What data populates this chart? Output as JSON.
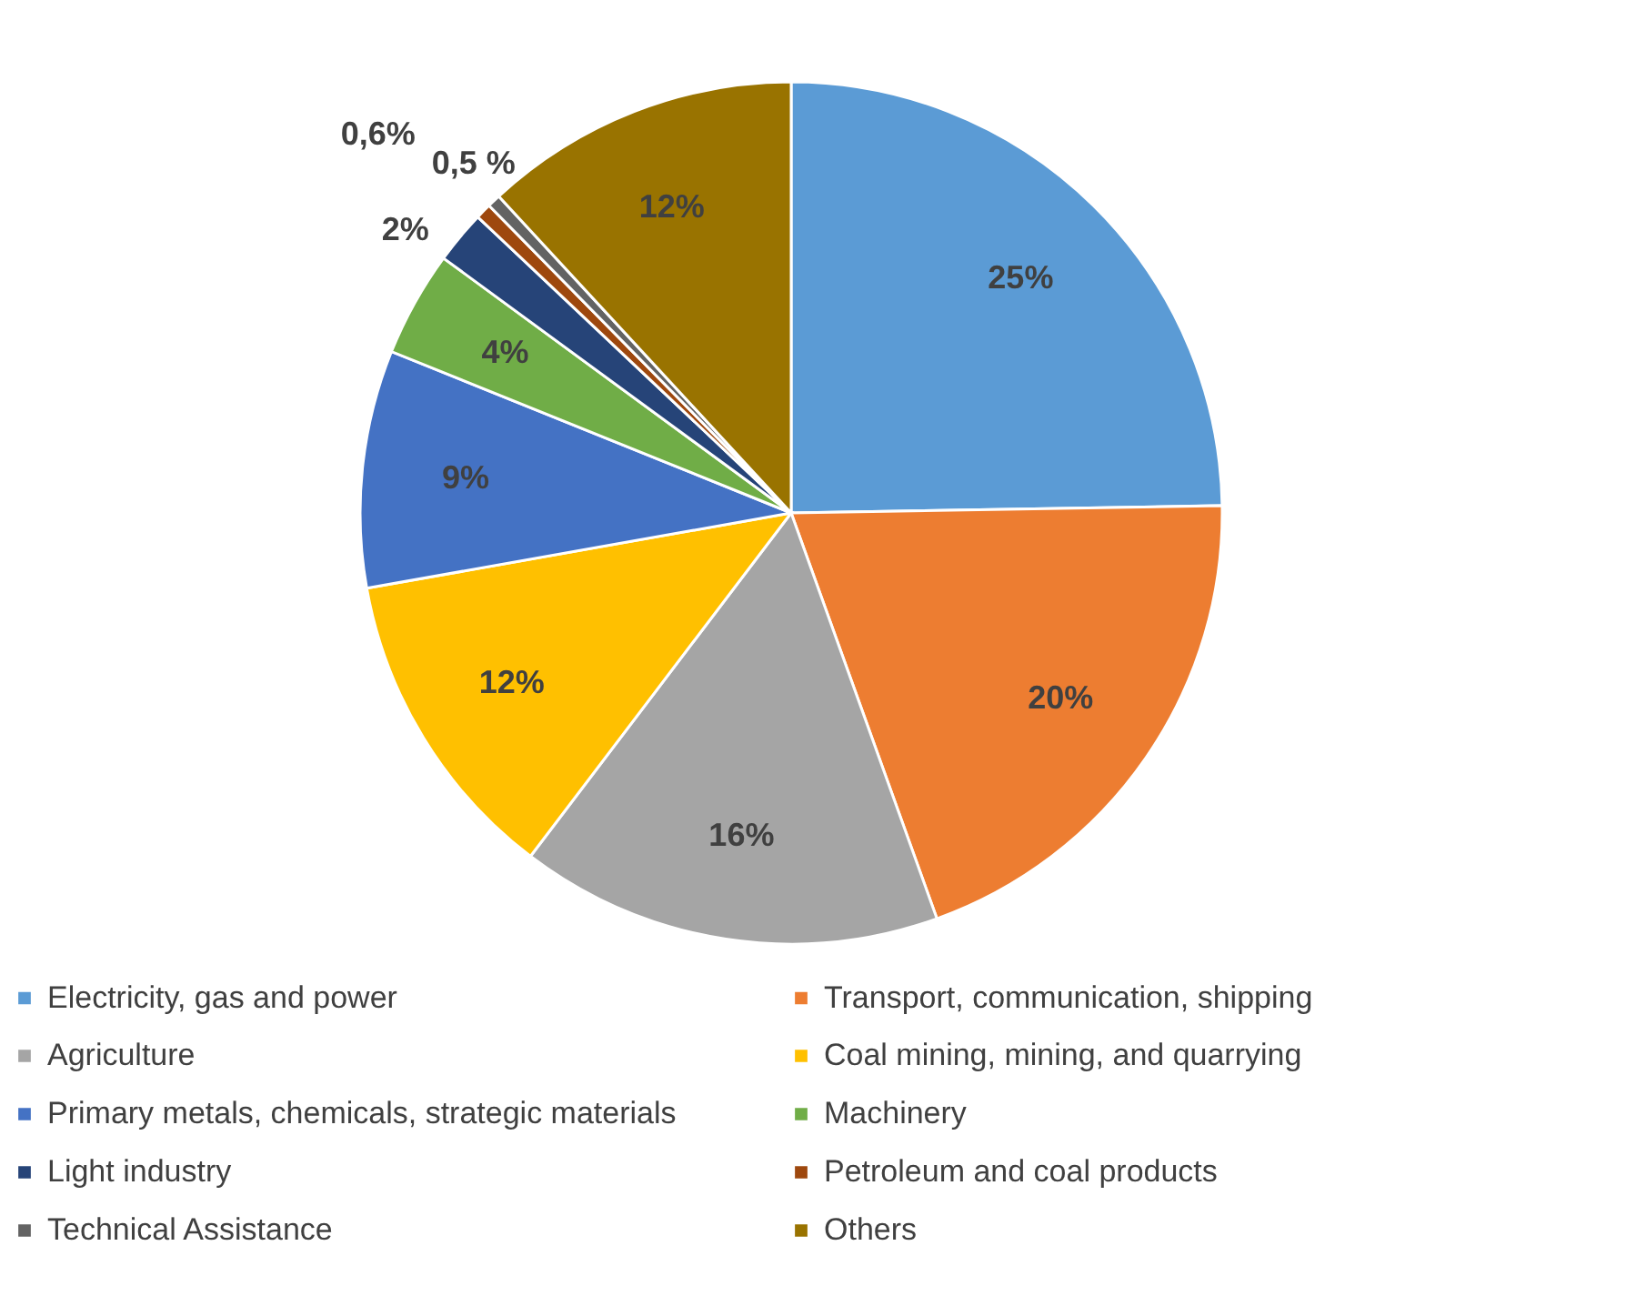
{
  "chart_data": {
    "type": "pie",
    "categories": [
      "Electricity, gas and power",
      "Transport, communication, shipping",
      "Agriculture",
      "Coal mining, mining, and quarrying",
      "Primary metals, chemicals, strategic materials",
      "Machinery",
      "Light industry",
      "Petroleum and coal products",
      "Technical Assistance",
      "Others"
    ],
    "values": [
      25,
      20,
      16,
      12,
      9,
      4,
      2,
      0.6,
      0.5,
      12
    ],
    "colors": [
      "#5b9bd5",
      "#ed7d31",
      "#a5a5a5",
      "#ffc000",
      "#4472c4",
      "#70ad47",
      "#264478",
      "#9e480e",
      "#636363",
      "#997300"
    ],
    "value_labels": [
      "25%",
      "20%",
      "16%",
      "12%",
      "9%",
      "4%",
      "2%",
      "0,6%",
      "0,5 %",
      "12%"
    ],
    "legend": "bottom"
  }
}
